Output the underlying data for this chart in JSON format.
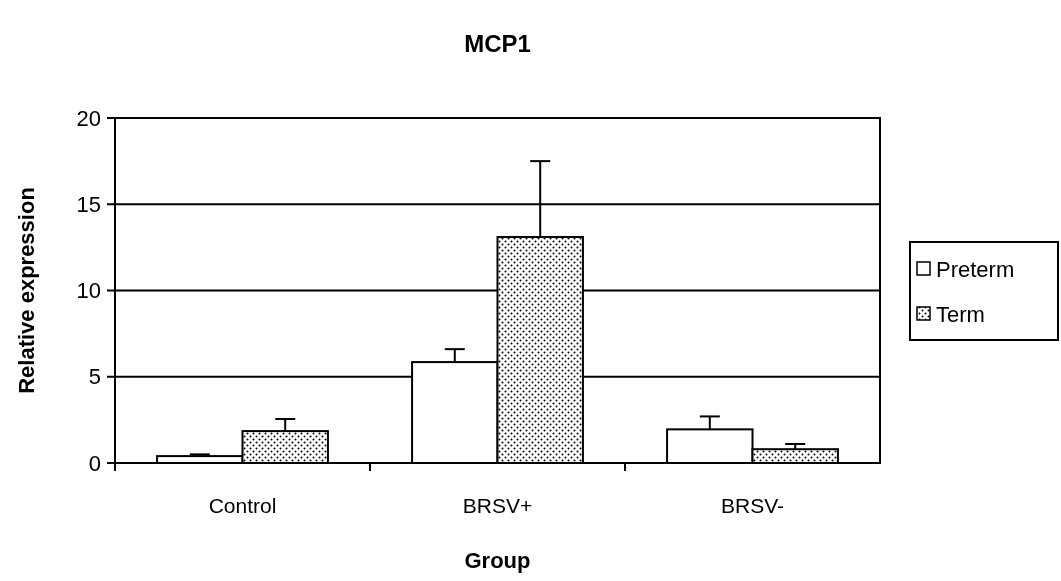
{
  "chart_data": {
    "type": "bar",
    "title": "MCP1",
    "xlabel": "Group",
    "ylabel": "Relative expression",
    "categories": [
      "Control",
      "BRSV+",
      "BRSV-"
    ],
    "series": [
      {
        "name": "Preterm",
        "color": "#ffffff",
        "values": [
          0.4,
          5.85,
          1.95
        ],
        "errors": [
          0.1,
          0.75,
          0.75
        ]
      },
      {
        "name": "Term",
        "color": "#000000",
        "values": [
          1.85,
          13.1,
          0.8
        ],
        "errors": [
          0.7,
          4.4,
          0.3
        ]
      }
    ],
    "ylim": [
      0,
      20
    ],
    "yticks": [
      0,
      5,
      10,
      15,
      20
    ],
    "grid": "y",
    "legend": "right"
  }
}
